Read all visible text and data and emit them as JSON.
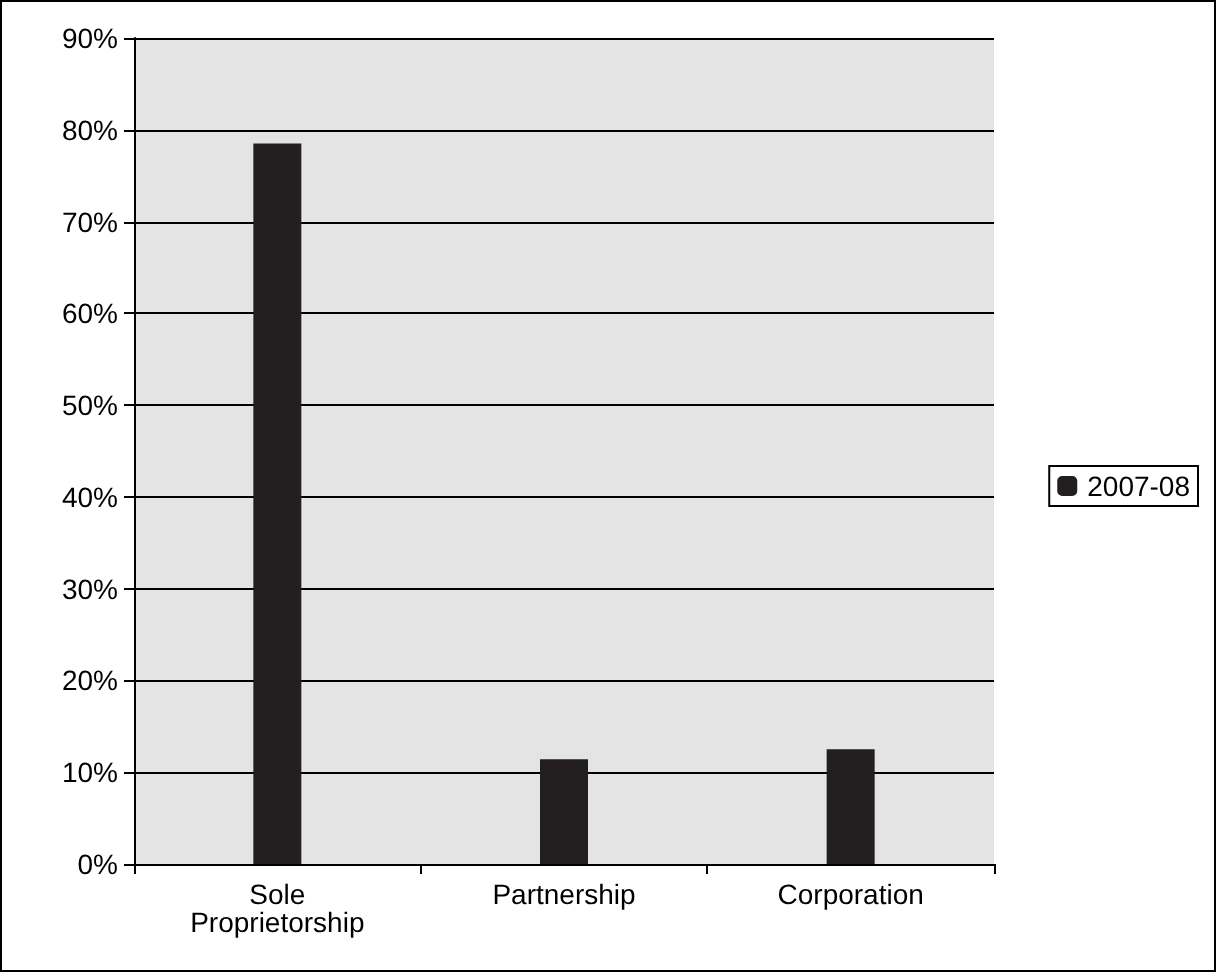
{
  "chart_data": {
    "type": "bar",
    "categories": [
      "Sole\nProprietorship",
      "Partnership",
      "Corporation"
    ],
    "series": [
      {
        "name": "2007-08",
        "color": "#231f20",
        "values": [
          78.5,
          11.4,
          12.5
        ]
      }
    ],
    "ylim": [
      0,
      90
    ],
    "yticks": [
      {
        "value": 0,
        "label": "0%"
      },
      {
        "value": 10,
        "label": "10%"
      },
      {
        "value": 20,
        "label": "20%"
      },
      {
        "value": 30,
        "label": "30%"
      },
      {
        "value": 40,
        "label": "40%"
      },
      {
        "value": 50,
        "label": "50%"
      },
      {
        "value": 60,
        "label": "60%"
      },
      {
        "value": 70,
        "label": "70%"
      },
      {
        "value": 80,
        "label": "80%"
      },
      {
        "value": 90,
        "label": "90%"
      }
    ],
    "grid": "y",
    "legend": "right"
  }
}
